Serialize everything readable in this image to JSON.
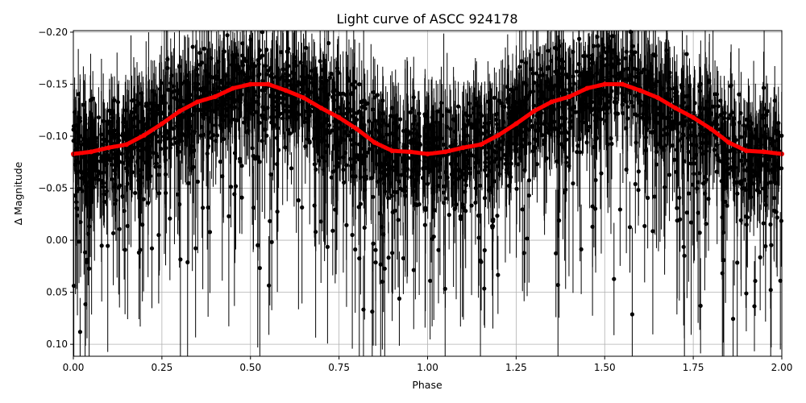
{
  "chart_data": {
    "type": "scatter",
    "title": "Light curve of ASCC 924178",
    "xlabel": "Phase",
    "ylabel": "Δ Magnitude",
    "xlim": [
      0,
      2
    ],
    "ylim": [
      0.1115,
      -0.2015
    ],
    "y_inverted": true,
    "grid": true,
    "xticks": [
      "0.00",
      "0.25",
      "0.50",
      "0.75",
      "1.00",
      "1.25",
      "1.50",
      "1.75",
      "2.00"
    ],
    "yticks": [
      "−0.20",
      "−0.15",
      "−0.10",
      "−0.05",
      "0.00",
      "0.05",
      "0.10"
    ],
    "colors": {
      "data": "#000000",
      "binned": "#ff0000",
      "grid": "#b0b0b0"
    },
    "raw_points_note_visible": false,
    "binned_series": {
      "x": [
        0,
        0.05,
        0.1,
        0.15,
        0.2,
        0.25,
        0.3,
        0.35,
        0.4,
        0.45,
        0.5,
        0.55,
        0.6,
        0.65,
        0.7,
        0.75,
        0.8,
        0.85,
        0.9,
        0.95,
        1.0,
        1.05,
        1.1,
        1.15,
        1.2,
        1.25,
        1.3,
        1.35,
        1.4,
        1.45,
        1.5,
        1.55,
        1.6,
        1.65,
        1.7,
        1.75,
        1.8,
        1.85,
        1.9,
        1.95,
        2.0
      ],
      "y": [
        -0.083,
        -0.085,
        -0.089,
        -0.092,
        -0.101,
        -0.112,
        -0.124,
        -0.133,
        -0.138,
        -0.146,
        -0.15,
        -0.15,
        -0.144,
        -0.137,
        -0.127,
        -0.118,
        -0.107,
        -0.094,
        -0.086,
        -0.085,
        -0.083,
        -0.085,
        -0.089,
        -0.092,
        -0.101,
        -0.112,
        -0.124,
        -0.133,
        -0.138,
        -0.146,
        -0.15,
        -0.15,
        -0.144,
        -0.137,
        -0.127,
        -0.118,
        -0.107,
        -0.094,
        -0.086,
        -0.085,
        -0.083
      ]
    }
  }
}
